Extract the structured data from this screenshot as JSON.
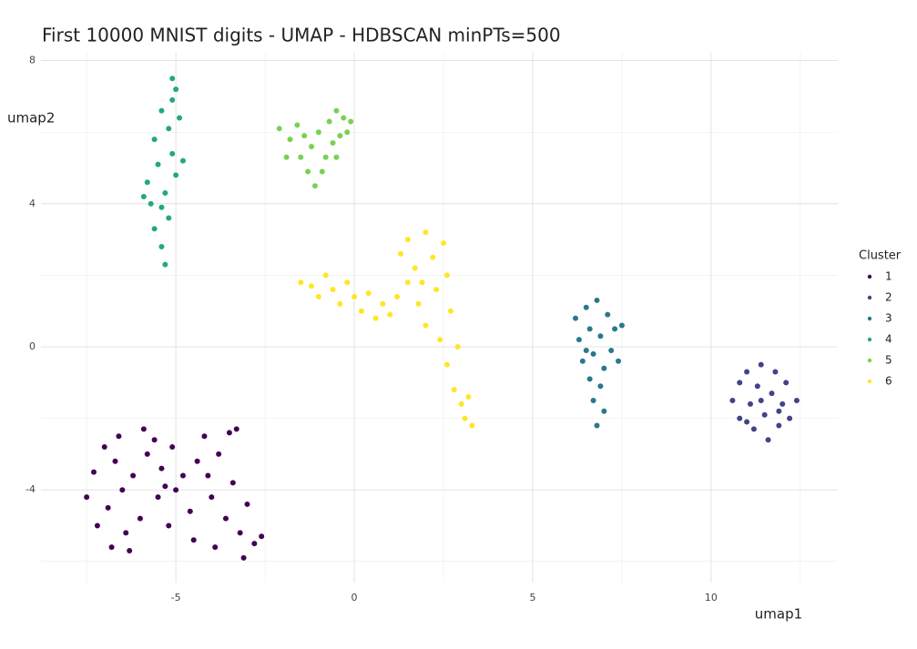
{
  "chart_data": {
    "type": "scatter",
    "title": "First 10000 MNIST digits - UMAP - HDBSCAN minPTs=500",
    "x_label": "umap1",
    "y_label": "umap2",
    "legend_title": "Cluster",
    "xlim": [
      -8.78,
      13.55
    ],
    "ylim": [
      -6.59,
      8.22
    ],
    "xticks": [
      -5,
      0,
      5,
      10
    ],
    "yticks": [
      -4,
      0,
      4,
      8
    ],
    "x_minor_grid": [
      -7.5,
      -2.5,
      2.5,
      7.5,
      12.5
    ],
    "y_minor_grid": [
      -6,
      -2,
      2,
      6
    ],
    "grid": true,
    "legend_position": "right",
    "series": [
      {
        "name": "1",
        "color": "#440154",
        "x": [
          -7.5,
          -7.3,
          -7.2,
          -7.0,
          -6.9,
          -6.8,
          -6.7,
          -6.6,
          -6.5,
          -6.4,
          -6.2,
          -6.0,
          -5.9,
          -5.8,
          -5.6,
          -5.5,
          -5.4,
          -5.2,
          -5.1,
          -5.0,
          -4.8,
          -4.6,
          -4.5,
          -4.4,
          -4.2,
          -4.0,
          -3.9,
          -3.8,
          -3.6,
          -3.5,
          -3.4,
          -3.2,
          -3.1,
          -3.0,
          -2.8,
          -2.6,
          -6.3,
          -5.3,
          -4.1,
          -3.3
        ],
        "y": [
          -4.2,
          -3.5,
          -5.0,
          -2.8,
          -4.5,
          -5.6,
          -3.2,
          -2.5,
          -4.0,
          -5.2,
          -3.6,
          -4.8,
          -2.3,
          -3.0,
          -2.6,
          -4.2,
          -3.4,
          -5.0,
          -2.8,
          -4.0,
          -3.6,
          -4.6,
          -5.4,
          -3.2,
          -2.5,
          -4.2,
          -5.6,
          -3.0,
          -4.8,
          -2.4,
          -3.8,
          -5.2,
          -5.9,
          -4.4,
          -5.5,
          -5.3,
          -5.7,
          -3.9,
          -3.6,
          -2.3
        ]
      },
      {
        "name": "2",
        "color": "#414487",
        "x": [
          10.6,
          10.8,
          10.8,
          11.0,
          11.1,
          11.2,
          11.3,
          11.4,
          11.5,
          11.6,
          11.7,
          11.8,
          11.9,
          12.0,
          12.1,
          12.2,
          12.4,
          11.4,
          11.0,
          11.9
        ],
        "y": [
          -1.5,
          -1.0,
          -2.0,
          -0.7,
          -1.6,
          -2.3,
          -1.1,
          -0.5,
          -1.9,
          -2.6,
          -1.3,
          -0.7,
          -2.2,
          -1.6,
          -1.0,
          -2.0,
          -1.5,
          -1.5,
          -2.1,
          -1.8
        ]
      },
      {
        "name": "3",
        "color": "#2A788E",
        "x": [
          6.2,
          6.3,
          6.4,
          6.5,
          6.6,
          6.6,
          6.7,
          6.7,
          6.8,
          6.8,
          6.9,
          7.0,
          7.0,
          7.1,
          7.2,
          7.3,
          7.4,
          7.5,
          6.5,
          6.9
        ],
        "y": [
          0.8,
          0.2,
          -0.4,
          1.1,
          0.5,
          -0.9,
          -1.5,
          -0.2,
          1.3,
          -2.2,
          0.3,
          -0.6,
          -1.8,
          0.9,
          -0.1,
          0.5,
          -0.4,
          0.6,
          -0.1,
          -1.1
        ]
      },
      {
        "name": "4",
        "color": "#22A884",
        "x": [
          -5.3,
          -5.4,
          -5.6,
          -5.2,
          -5.7,
          -5.3,
          -5.8,
          -5.0,
          -5.5,
          -5.1,
          -5.6,
          -5.2,
          -4.9,
          -5.4,
          -5.1,
          -5.0,
          -5.1,
          -4.8,
          -5.9,
          -5.4
        ],
        "y": [
          2.3,
          2.8,
          3.3,
          3.6,
          4.0,
          4.3,
          4.6,
          4.8,
          5.1,
          5.4,
          5.8,
          6.1,
          6.4,
          6.6,
          6.9,
          7.2,
          7.5,
          5.2,
          4.2,
          3.9
        ]
      },
      {
        "name": "5",
        "color": "#7AD151",
        "x": [
          -2.1,
          -1.8,
          -1.6,
          -1.5,
          -1.3,
          -1.2,
          -1.1,
          -1.0,
          -0.8,
          -0.7,
          -0.6,
          -0.5,
          -0.4,
          -0.3,
          -0.2,
          -0.1,
          -0.9,
          -1.4,
          -0.5,
          -1.9
        ],
        "y": [
          6.1,
          5.8,
          6.2,
          5.3,
          4.9,
          5.6,
          4.5,
          6.0,
          5.3,
          6.3,
          5.7,
          6.6,
          5.9,
          6.4,
          6.0,
          6.3,
          4.9,
          5.9,
          5.3,
          5.3
        ]
      },
      {
        "name": "6",
        "color": "#FDE725",
        "x": [
          -1.5,
          -1.2,
          -1.0,
          -0.8,
          -0.6,
          -0.4,
          -0.2,
          0.0,
          0.2,
          0.4,
          0.6,
          0.8,
          1.0,
          1.2,
          1.3,
          1.5,
          1.5,
          1.7,
          1.8,
          2.0,
          2.0,
          2.2,
          2.3,
          2.4,
          2.5,
          2.6,
          2.7,
          2.8,
          2.9,
          3.0,
          3.1,
          3.2,
          3.3,
          1.9,
          2.6
        ],
        "y": [
          1.8,
          1.7,
          1.4,
          2.0,
          1.6,
          1.2,
          1.8,
          1.4,
          1.0,
          1.5,
          0.8,
          1.2,
          0.9,
          1.4,
          2.6,
          3.0,
          1.8,
          2.2,
          1.2,
          3.2,
          0.6,
          2.5,
          1.6,
          0.2,
          2.9,
          -0.5,
          1.0,
          -1.2,
          0.0,
          -1.6,
          -2.0,
          -1.4,
          -2.2,
          1.8,
          2.0
        ]
      }
    ]
  }
}
